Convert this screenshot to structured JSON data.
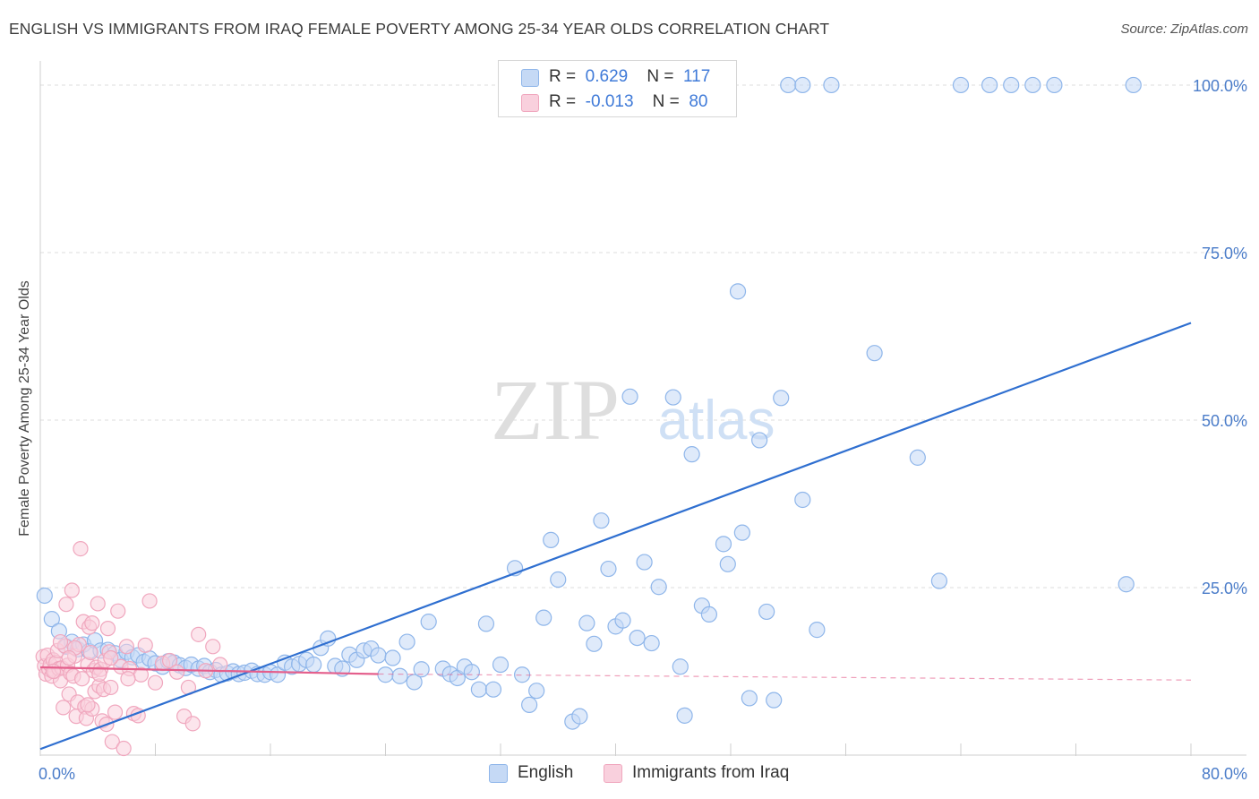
{
  "title": "ENGLISH VS IMMIGRANTS FROM IRAQ FEMALE POVERTY AMONG 25-34 YEAR OLDS CORRELATION CHART",
  "source": "Source: ZipAtlas.com",
  "watermark": {
    "zip": "ZIP",
    "atlas": "atlas"
  },
  "chart_data": {
    "type": "scatter",
    "xlabel": "",
    "ylabel": "Female Poverty Among 25-34 Year Olds",
    "xlim": [
      0,
      80
    ],
    "ylim": [
      0,
      102
    ],
    "x_tick_labels": [
      "0.0%",
      "80.0%"
    ],
    "y_ticks": [
      {
        "value": 25,
        "label": "25.0%"
      },
      {
        "value": 50,
        "label": "50.0%"
      },
      {
        "value": 75,
        "label": "75.0%"
      },
      {
        "value": 100,
        "label": "100.0%"
      }
    ],
    "grid": "horizontal dashed",
    "legend_position": "bottom-center",
    "stats": [
      {
        "r_label": "R =",
        "r": "0.629",
        "n_label": "N =",
        "n": "117"
      },
      {
        "r_label": "R =",
        "r": "-0.013",
        "n_label": "N =",
        "n": "80"
      }
    ],
    "series": [
      {
        "name": "English",
        "color": "#8fb6ea",
        "fill": "#c5d9f5",
        "line_color": "#2f6fd0",
        "trend": {
          "x": [
            0,
            80
          ],
          "y": [
            0.9,
            64.5
          ],
          "dashed": false
        },
        "points": [
          [
            0.3,
            23.8
          ],
          [
            0.8,
            20.3
          ],
          [
            1.3,
            18.5
          ],
          [
            1.8,
            16.2
          ],
          [
            2.2,
            16.9
          ],
          [
            2.6,
            15.8
          ],
          [
            3.0,
            16.5
          ],
          [
            3.4,
            15.5
          ],
          [
            3.8,
            17.1
          ],
          [
            4.2,
            15.6
          ],
          [
            4.7,
            15.7
          ],
          [
            5.2,
            15.2
          ],
          [
            5.6,
            14.2
          ],
          [
            6.0,
            15.4
          ],
          [
            6.4,
            14.6
          ],
          [
            6.8,
            14.9
          ],
          [
            7.2,
            13.9
          ],
          [
            7.6,
            14.4
          ],
          [
            8.0,
            13.7
          ],
          [
            8.5,
            13.2
          ],
          [
            8.9,
            14.0
          ],
          [
            9.3,
            13.8
          ],
          [
            9.7,
            13.4
          ],
          [
            10.1,
            13.0
          ],
          [
            10.5,
            13.5
          ],
          [
            11.0,
            12.9
          ],
          [
            11.4,
            13.3
          ],
          [
            11.8,
            12.4
          ],
          [
            12.2,
            12.7
          ],
          [
            12.6,
            12.0
          ],
          [
            13.0,
            12.2
          ],
          [
            13.4,
            12.5
          ],
          [
            13.8,
            12.1
          ],
          [
            14.2,
            12.3
          ],
          [
            14.7,
            12.6
          ],
          [
            15.1,
            12.1
          ],
          [
            15.6,
            12.0
          ],
          [
            16.0,
            12.4
          ],
          [
            16.5,
            12.0
          ],
          [
            17.0,
            13.8
          ],
          [
            17.5,
            13.2
          ],
          [
            18.0,
            13.6
          ],
          [
            18.5,
            14.2
          ],
          [
            19.0,
            13.5
          ],
          [
            19.5,
            16.0
          ],
          [
            20.0,
            17.4
          ],
          [
            20.5,
            13.3
          ],
          [
            21.0,
            12.9
          ],
          [
            21.5,
            15.0
          ],
          [
            22.0,
            14.2
          ],
          [
            22.5,
            15.6
          ],
          [
            23.0,
            15.9
          ],
          [
            23.5,
            14.9
          ],
          [
            24.0,
            12.0
          ],
          [
            24.5,
            14.5
          ],
          [
            25.0,
            11.8
          ],
          [
            25.5,
            16.9
          ],
          [
            26.0,
            10.9
          ],
          [
            26.5,
            12.8
          ],
          [
            27.0,
            19.9
          ],
          [
            28.0,
            12.9
          ],
          [
            28.5,
            12.1
          ],
          [
            29.0,
            11.5
          ],
          [
            29.5,
            13.2
          ],
          [
            30.0,
            12.4
          ],
          [
            30.5,
            9.8
          ],
          [
            31.0,
            19.6
          ],
          [
            31.5,
            9.8
          ],
          [
            32.0,
            13.5
          ],
          [
            33.0,
            27.9
          ],
          [
            33.5,
            12.0
          ],
          [
            34.0,
            7.5
          ],
          [
            34.5,
            9.6
          ],
          [
            35.0,
            20.5
          ],
          [
            35.5,
            32.1
          ],
          [
            36.0,
            26.2
          ],
          [
            37.0,
            5.0
          ],
          [
            37.5,
            5.8
          ],
          [
            38.0,
            19.7
          ],
          [
            38.5,
            16.6
          ],
          [
            39.0,
            35.0
          ],
          [
            39.5,
            27.8
          ],
          [
            40.0,
            19.2
          ],
          [
            40.5,
            20.1
          ],
          [
            41.0,
            53.5
          ],
          [
            41.5,
            17.5
          ],
          [
            42.0,
            28.8
          ],
          [
            42.5,
            16.7
          ],
          [
            43.0,
            25.1
          ],
          [
            44.0,
            53.4
          ],
          [
            44.5,
            13.2
          ],
          [
            44.8,
            5.9
          ],
          [
            45.3,
            44.9
          ],
          [
            46.0,
            22.3
          ],
          [
            46.5,
            21.0
          ],
          [
            47.5,
            31.5
          ],
          [
            47.8,
            28.5
          ],
          [
            48.5,
            69.2
          ],
          [
            48.8,
            33.2
          ],
          [
            49.3,
            8.5
          ],
          [
            50.0,
            47.0
          ],
          [
            50.5,
            21.4
          ],
          [
            51.0,
            8.2
          ],
          [
            51.5,
            53.3
          ],
          [
            53.0,
            38.1
          ],
          [
            54.0,
            18.7
          ],
          [
            58.0,
            60.0
          ],
          [
            61.0,
            44.4
          ],
          [
            62.5,
            26.0
          ],
          [
            75.5,
            25.5
          ],
          [
            52.0,
            100.0
          ],
          [
            53.0,
            100.0
          ],
          [
            55.0,
            100.0
          ],
          [
            64.0,
            100.0
          ],
          [
            66.0,
            100.0
          ],
          [
            67.5,
            100.0
          ],
          [
            69.0,
            100.0
          ],
          [
            70.5,
            100.0
          ],
          [
            76.0,
            100.0
          ]
        ]
      },
      {
        "name": "Immigrants from Iraq",
        "color": "#f0a7be",
        "fill": "#f9d0dd",
        "line_color": "#e45f8c",
        "trend": {
          "x": [
            0,
            23.5
          ],
          "y": [
            13.1,
            12.1
          ],
          "dashed": false
        },
        "trend_extension": {
          "x": [
            23.5,
            80
          ],
          "y": [
            12.1,
            11.2
          ],
          "dashed": true
        },
        "points": [
          [
            0.2,
            14.7
          ],
          [
            0.3,
            13.3
          ],
          [
            0.4,
            12.1
          ],
          [
            0.5,
            14.9
          ],
          [
            0.6,
            12.8
          ],
          [
            0.7,
            13.5
          ],
          [
            0.8,
            11.8
          ],
          [
            0.9,
            14.2
          ],
          [
            1.0,
            12.5
          ],
          [
            1.1,
            13.8
          ],
          [
            1.2,
            15.6
          ],
          [
            1.3,
            12.9
          ],
          [
            1.4,
            11.1
          ],
          [
            1.5,
            13.0
          ],
          [
            1.6,
            7.1
          ],
          [
            1.7,
            16.3
          ],
          [
            1.8,
            22.5
          ],
          [
            1.9,
            13.4
          ],
          [
            2.0,
            9.1
          ],
          [
            2.1,
            12.2
          ],
          [
            2.2,
            24.6
          ],
          [
            2.3,
            11.8
          ],
          [
            2.4,
            14.8
          ],
          [
            2.5,
            5.8
          ],
          [
            2.6,
            7.9
          ],
          [
            2.7,
            16.5
          ],
          [
            2.8,
            30.8
          ],
          [
            2.9,
            11.4
          ],
          [
            3.0,
            19.9
          ],
          [
            3.1,
            7.2
          ],
          [
            3.2,
            5.5
          ],
          [
            3.3,
            13.5
          ],
          [
            3.4,
            19.1
          ],
          [
            3.5,
            15.3
          ],
          [
            3.6,
            6.9
          ],
          [
            3.7,
            12.6
          ],
          [
            3.8,
            9.5
          ],
          [
            3.9,
            13.1
          ],
          [
            4.0,
            22.6
          ],
          [
            4.1,
            10.3
          ],
          [
            4.2,
            12.8
          ],
          [
            4.3,
            5.1
          ],
          [
            4.4,
            9.8
          ],
          [
            4.5,
            14.1
          ],
          [
            4.6,
            4.6
          ],
          [
            4.7,
            18.9
          ],
          [
            4.8,
            15.4
          ],
          [
            4.9,
            10.1
          ],
          [
            5.0,
            2.0
          ],
          [
            5.2,
            6.4
          ],
          [
            5.4,
            21.5
          ],
          [
            5.6,
            13.2
          ],
          [
            6.0,
            16.2
          ],
          [
            6.2,
            12.9
          ],
          [
            6.5,
            6.2
          ],
          [
            6.8,
            5.9
          ],
          [
            7.0,
            12.0
          ],
          [
            7.3,
            16.4
          ],
          [
            7.6,
            23.0
          ],
          [
            8.0,
            10.8
          ],
          [
            8.5,
            13.7
          ],
          [
            9.0,
            14.1
          ],
          [
            9.5,
            12.4
          ],
          [
            10.0,
            5.8
          ],
          [
            10.3,
            10.1
          ],
          [
            10.6,
            4.7
          ],
          [
            11.0,
            18.0
          ],
          [
            11.5,
            12.6
          ],
          [
            12.0,
            16.2
          ],
          [
            12.5,
            13.5
          ],
          [
            2.4,
            16.0
          ],
          [
            5.8,
            1.0
          ],
          [
            3.3,
            7.5
          ],
          [
            4.1,
            12.1
          ],
          [
            1.4,
            16.9
          ],
          [
            0.9,
            12.5
          ],
          [
            3.6,
            19.7
          ],
          [
            4.9,
            14.5
          ],
          [
            2.0,
            14.5
          ],
          [
            6.1,
            11.4
          ]
        ]
      }
    ]
  }
}
